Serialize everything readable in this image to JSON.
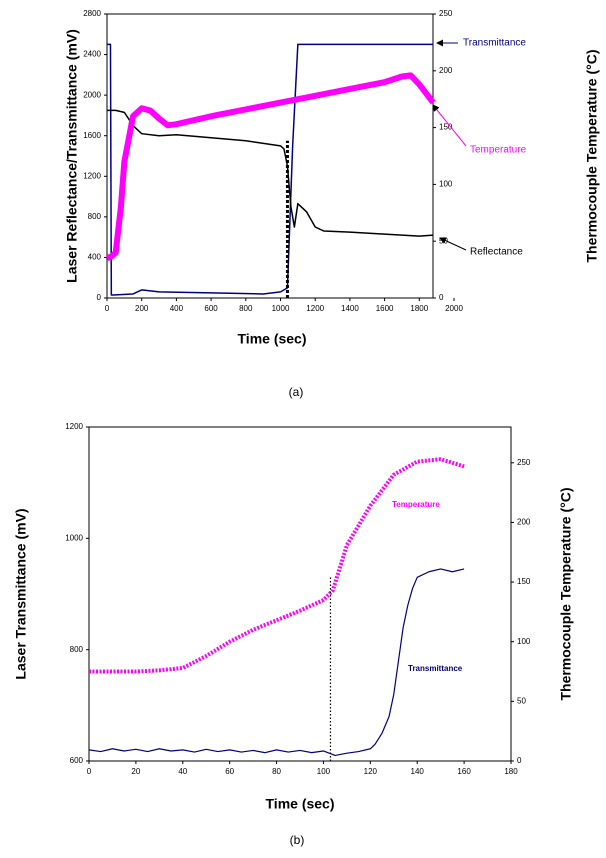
{
  "chart_data": [
    {
      "type": "line",
      "caption": "(a)",
      "xlabel": "Time (sec)",
      "ylabel": "Laser Reflectance/Transmittance (mV)",
      "y2label": "Thermocouple Temperature (°C)",
      "xlim": [
        0,
        2000
      ],
      "xticks": [
        0,
        200,
        400,
        600,
        800,
        1000,
        1200,
        1400,
        1600,
        1800,
        2000
      ],
      "ylim": [
        0,
        2800
      ],
      "yticks": [
        0,
        400,
        800,
        1200,
        1600,
        2000,
        2400,
        2800
      ],
      "y2lim": [
        0,
        250
      ],
      "y2ticks": [
        0,
        50,
        100,
        150,
        200,
        250
      ],
      "series": [
        {
          "name": "Transmittance",
          "color": "#000080",
          "width": 1.5,
          "x": [
            0,
            20,
            25,
            35,
            150,
            200,
            300,
            600,
            900,
            1000,
            1040,
            1070,
            1100,
            1120,
            1880
          ],
          "values": [
            2500,
            2500,
            30,
            30,
            40,
            80,
            60,
            50,
            40,
            60,
            100,
            1500,
            2500,
            2500,
            2500
          ]
        },
        {
          "name": "Reflectance",
          "color": "#000000",
          "width": 1.5,
          "x": [
            0,
            50,
            100,
            150,
            200,
            300,
            400,
            600,
            800,
            1000,
            1020,
            1040,
            1060,
            1080,
            1100,
            1150,
            1200,
            1250,
            1400,
            1600,
            1800,
            1880
          ],
          "values": [
            1850,
            1850,
            1830,
            1700,
            1620,
            1600,
            1610,
            1580,
            1550,
            1500,
            1470,
            1300,
            900,
            700,
            930,
            850,
            700,
            660,
            650,
            630,
            610,
            620
          ]
        },
        {
          "name": "Temperature",
          "color": "#ff00ff",
          "width": 6,
          "axis": "y2",
          "x": [
            0,
            30,
            50,
            80,
            100,
            150,
            200,
            250,
            300,
            350,
            400,
            600,
            800,
            1000,
            1200,
            1400,
            1600,
            1700,
            1750,
            1800,
            1880
          ],
          "values": [
            35,
            37,
            40,
            80,
            120,
            160,
            167,
            165,
            158,
            152,
            153,
            160,
            166,
            172,
            178,
            184,
            190,
            195,
            196,
            188,
            172
          ]
        }
      ],
      "vline": {
        "x": 1040,
        "y": [
          0,
          1550
        ]
      }
    },
    {
      "type": "line",
      "caption": "(b)",
      "xlabel": "Time (sec)",
      "ylabel": "Laser Transmittance (mV)",
      "y2label": "Thermocouple Temperature (°C)",
      "xlim": [
        0,
        180
      ],
      "xticks": [
        0,
        20,
        40,
        60,
        80,
        100,
        120,
        140,
        160,
        180
      ],
      "ylim": [
        600,
        1200
      ],
      "yticks": [
        600,
        800,
        1000,
        1200
      ],
      "y2lim": [
        0,
        280
      ],
      "y2ticks": [
        0,
        50,
        100,
        150,
        200,
        250
      ],
      "series": [
        {
          "name": "Transmittance",
          "color": "#000080",
          "width": 1.2,
          "x": [
            0,
            5,
            10,
            15,
            20,
            25,
            30,
            35,
            40,
            45,
            50,
            55,
            60,
            65,
            70,
            75,
            80,
            85,
            90,
            95,
            100,
            105,
            110,
            115,
            120,
            122,
            125,
            128,
            130,
            132,
            134,
            136,
            138,
            140,
            145,
            150,
            155,
            160
          ],
          "values": [
            620,
            617,
            622,
            618,
            621,
            617,
            622,
            618,
            620,
            616,
            621,
            617,
            620,
            616,
            619,
            615,
            620,
            616,
            619,
            615,
            618,
            610,
            614,
            617,
            622,
            630,
            650,
            680,
            720,
            780,
            840,
            880,
            910,
            930,
            940,
            945,
            940,
            945
          ]
        },
        {
          "name": "Temperature",
          "color": "#ff00ff",
          "width": 4,
          "dash": true,
          "axis": "y2",
          "x": [
            0,
            10,
            20,
            30,
            40,
            50,
            60,
            70,
            80,
            90,
            100,
            104,
            110,
            120,
            130,
            140,
            150,
            160
          ],
          "values": [
            75,
            75,
            75,
            76,
            78,
            88,
            100,
            110,
            118,
            126,
            135,
            143,
            181,
            214,
            240,
            251,
            253,
            247
          ]
        }
      ],
      "vline": {
        "x": 103,
        "y": [
          600,
          930
        ]
      }
    }
  ]
}
